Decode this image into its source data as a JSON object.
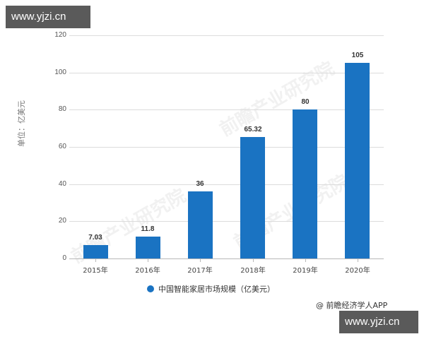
{
  "watermarks": {
    "top_badge": "www.yjzi.cn",
    "bottom_badge": "www.yjzi.cn",
    "background_text": "前瞻产业研究院"
  },
  "source": "@ 前瞻经济学人APP",
  "legend": {
    "label": "中国智能家居市场规模（亿美元）",
    "color": "#1a73c2"
  },
  "chart_data": {
    "type": "bar",
    "title": "",
    "categories": [
      "2015年",
      "2016年",
      "2017年",
      "2018年",
      "2019年",
      "2020年"
    ],
    "series": [
      {
        "name": "中国智能家居市场规模（亿美元）",
        "values": [
          7.03,
          11.8,
          36,
          65.32,
          80,
          105
        ],
        "color": "#1a73c2"
      }
    ],
    "value_labels": [
      "7.03",
      "11.8",
      "36",
      "65.32",
      "80",
      "105"
    ],
    "xlabel": "",
    "ylabel": "单位：亿美元",
    "ylim": [
      0,
      120
    ],
    "yticks": [
      "0",
      "20",
      "40",
      "60",
      "80",
      "100",
      "120"
    ],
    "grid": true,
    "legend_position": "bottom"
  }
}
